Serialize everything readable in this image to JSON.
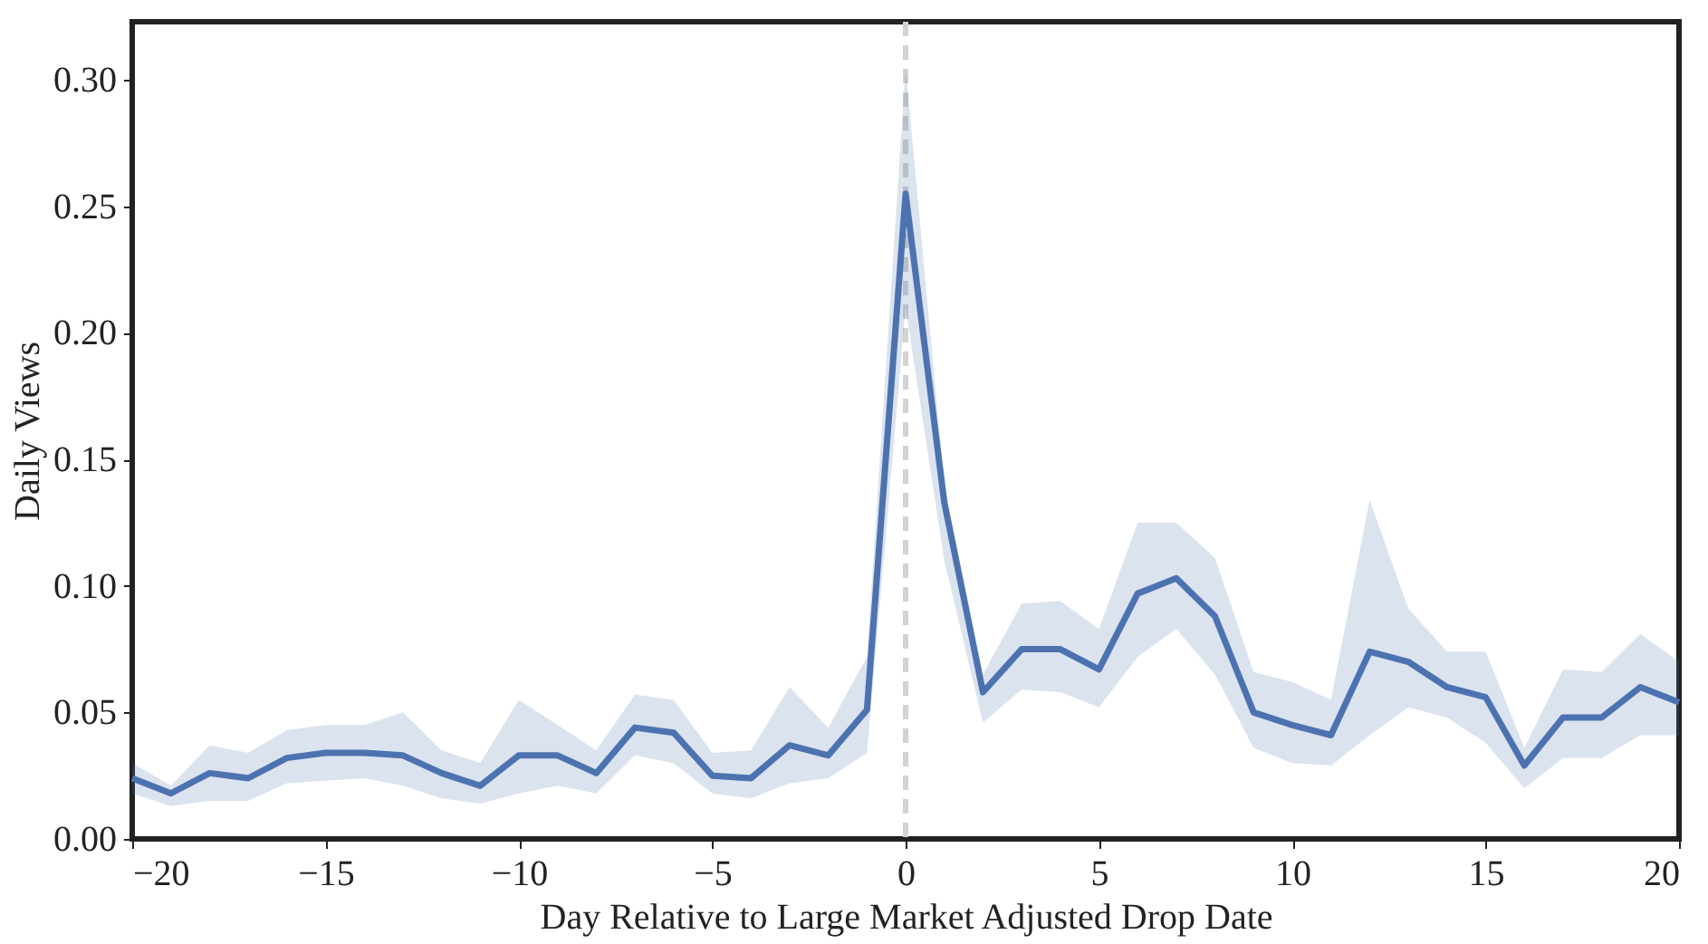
{
  "chart_data": {
    "type": "line",
    "xlabel": "Day Relative to Large Market Adjusted Drop Date",
    "ylabel": "Daily Views",
    "x": [
      -20,
      -19,
      -18,
      -17,
      -16,
      -15,
      -14,
      -13,
      -12,
      -11,
      -10,
      -9,
      -8,
      -7,
      -6,
      -5,
      -4,
      -3,
      -2,
      -1,
      0,
      1,
      2,
      3,
      4,
      5,
      6,
      7,
      8,
      9,
      10,
      11,
      12,
      13,
      14,
      15,
      16,
      17,
      18,
      19,
      20
    ],
    "series": [
      {
        "color": "#4c72b0",
        "values": [
          0.024,
          0.018,
          0.026,
          0.024,
          0.032,
          0.034,
          0.034,
          0.033,
          0.026,
          0.021,
          0.033,
          0.033,
          0.026,
          0.044,
          0.042,
          0.025,
          0.024,
          0.037,
          0.033,
          0.051,
          0.255,
          0.133,
          0.058,
          0.075,
          0.075,
          0.067,
          0.097,
          0.103,
          0.088,
          0.05,
          0.045,
          0.041,
          0.074,
          0.07,
          0.06,
          0.056,
          0.029,
          0.048,
          0.048,
          0.06,
          0.054
        ],
        "upper": [
          0.03,
          0.021,
          0.037,
          0.034,
          0.043,
          0.045,
          0.045,
          0.05,
          0.035,
          0.03,
          0.055,
          0.045,
          0.035,
          0.057,
          0.055,
          0.034,
          0.035,
          0.06,
          0.044,
          0.072,
          0.305,
          0.14,
          0.065,
          0.093,
          0.094,
          0.083,
          0.125,
          0.125,
          0.111,
          0.066,
          0.062,
          0.055,
          0.134,
          0.091,
          0.074,
          0.074,
          0.036,
          0.067,
          0.066,
          0.081,
          0.07
        ],
        "lower": [
          0.018,
          0.013,
          0.015,
          0.015,
          0.022,
          0.023,
          0.024,
          0.021,
          0.016,
          0.014,
          0.018,
          0.021,
          0.018,
          0.033,
          0.03,
          0.018,
          0.016,
          0.022,
          0.024,
          0.034,
          0.21,
          0.11,
          0.046,
          0.059,
          0.058,
          0.052,
          0.072,
          0.083,
          0.065,
          0.036,
          0.03,
          0.029,
          0.041,
          0.052,
          0.048,
          0.038,
          0.02,
          0.032,
          0.032,
          0.041,
          0.041
        ]
      }
    ],
    "xlim": [
      -20,
      20
    ],
    "xticks": [
      {
        "value": -20,
        "label": "−20"
      },
      {
        "value": -15,
        "label": "−15"
      },
      {
        "value": -10,
        "label": "−10"
      },
      {
        "value": -5,
        "label": "−5"
      },
      0,
      5,
      10,
      15,
      20
    ],
    "ylim": [
      0,
      0.323
    ],
    "yticks": [
      {
        "value": 0,
        "label": "0.00"
      },
      {
        "value": 0.05,
        "label": "0.05"
      },
      {
        "value": 0.1,
        "label": "0.10"
      },
      {
        "value": 0.15,
        "label": "0.15"
      },
      {
        "value": 0.2,
        "label": "0.20"
      },
      {
        "value": 0.25,
        "label": "0.25"
      },
      {
        "value": 0.3,
        "label": "0.30"
      }
    ],
    "ref_lines": [
      {
        "axis": "x",
        "value": 0,
        "color": "#d3d3d3",
        "line_style": "dashed"
      }
    ],
    "grid": false
  }
}
